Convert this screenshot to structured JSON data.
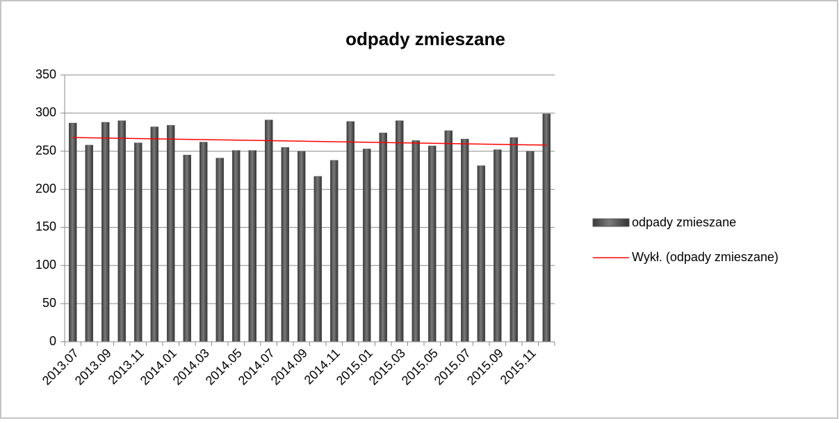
{
  "chart_data": {
    "type": "bar",
    "title": "odpady zmieszane",
    "categories": [
      "2013.07",
      null,
      "2013.09",
      null,
      "2013.11",
      null,
      "2014.01",
      null,
      "2014.03",
      null,
      "2014.05",
      null,
      "2014.07",
      null,
      "2014.09",
      null,
      "2014.11",
      null,
      "2015.01",
      null,
      "2015.03",
      null,
      "2015.05",
      null,
      "2015.07",
      null,
      "2015.09",
      null,
      "2015.11",
      null
    ],
    "series": [
      {
        "name": "odpady zmieszane",
        "color": "#555555",
        "values": [
          287,
          258,
          288,
          290,
          261,
          282,
          284,
          245,
          262,
          241,
          251,
          251,
          291,
          255,
          250,
          217,
          238,
          289,
          253,
          274,
          290,
          264,
          257,
          277,
          266,
          231,
          252,
          268,
          250,
          299
        ]
      }
    ],
    "trendline": {
      "name": "Wykł. (odpady zmieszane)",
      "color": "#ff0000",
      "start": 268,
      "end": 258
    },
    "ylim": [
      0,
      350
    ],
    "yticks": [
      0,
      50,
      100,
      150,
      200,
      250,
      300,
      350
    ],
    "grid": true,
    "legend": "right"
  }
}
